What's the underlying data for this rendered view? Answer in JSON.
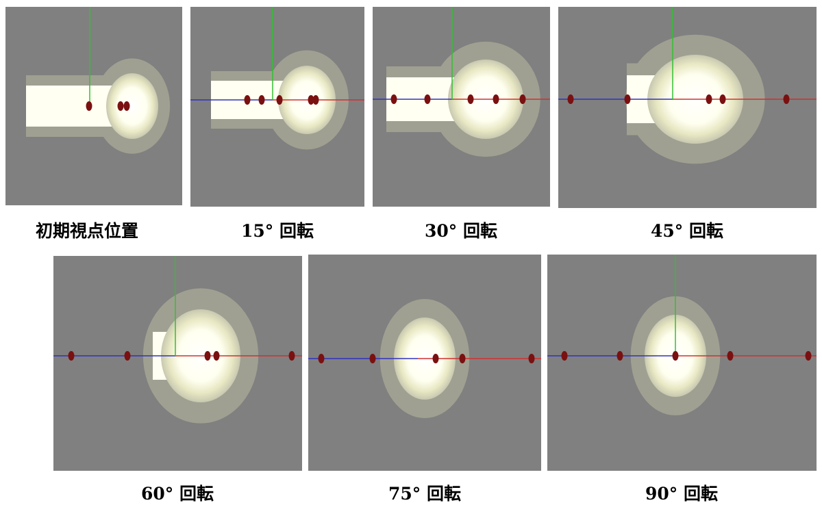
{
  "panels": [
    {
      "caption": "初期視点位置"
    },
    {
      "caption": "15° 回転"
    },
    {
      "caption": "30° 回転"
    },
    {
      "caption": "45° 回転"
    },
    {
      "caption": "60° 回転"
    },
    {
      "caption": "75° 回転"
    },
    {
      "caption": "90° 回転"
    }
  ]
}
